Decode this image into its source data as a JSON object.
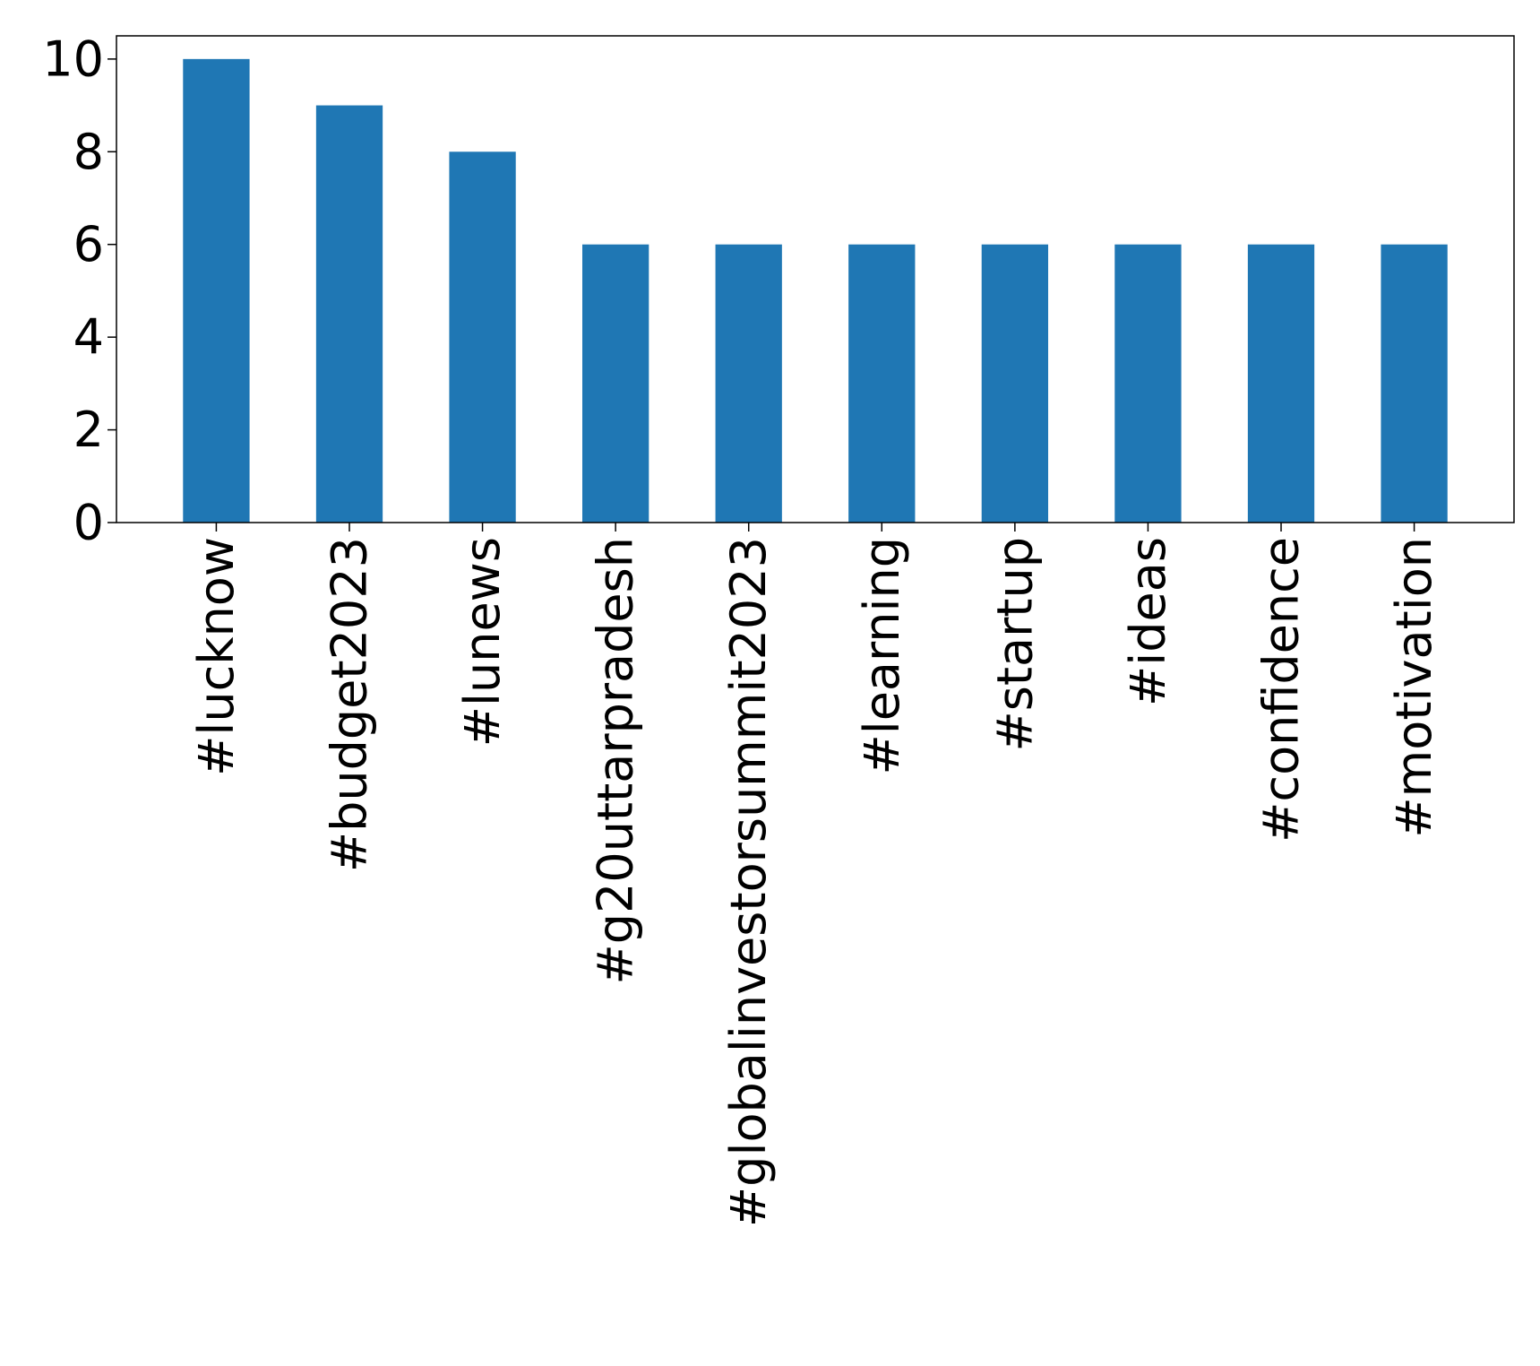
{
  "chart_data": {
    "type": "bar",
    "categories": [
      "#lucknow",
      "#budget2023",
      "#lunews",
      "#g20uttarpradesh",
      "#globalinvestorsummit2023",
      "#learning",
      "#startup",
      "#ideas",
      "#confidence",
      "#motivation"
    ],
    "values": [
      10,
      9,
      8,
      6,
      6,
      6,
      6,
      6,
      6,
      6
    ],
    "title": "",
    "xlabel": "",
    "ylabel": "",
    "ylim": [
      0,
      10.5
    ],
    "yticks": [
      "0",
      "2",
      "4",
      "6",
      "8",
      "10"
    ],
    "grid": false,
    "bar_color": "#1f77b4"
  }
}
